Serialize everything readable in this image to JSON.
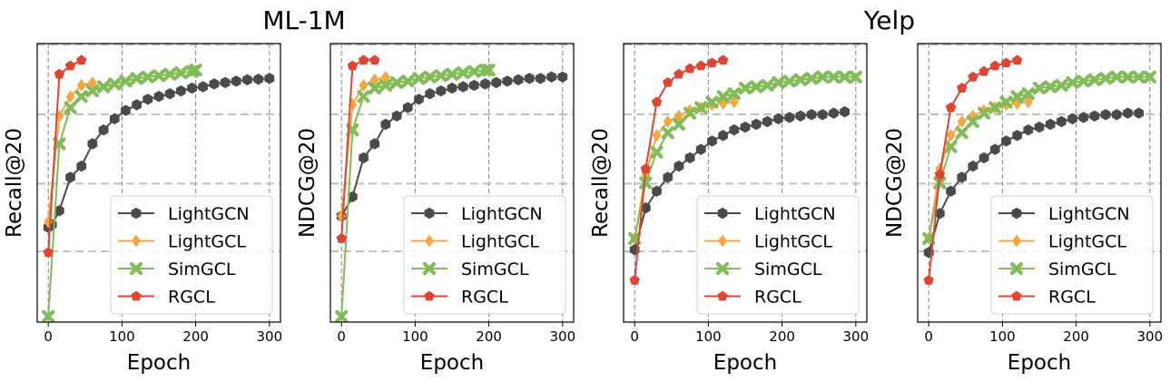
{
  "figure": {
    "titles": [
      "ML-1M",
      "Yelp"
    ]
  },
  "colors": {
    "LightGCN": "#4a4a4a",
    "LightGCL": "#f5a742",
    "SimGCL": "#82bc59",
    "RGCL": "#dc4632"
  },
  "markers": {
    "LightGCN": "hexagon",
    "LightGCL": "diamond",
    "SimGCL": "x-cross",
    "RGCL": "pentagon"
  },
  "chart_data": [
    {
      "type": "line",
      "title": "",
      "xlabel": "Epoch",
      "ylabel": "Recall@20",
      "xlim": [
        -15,
        315
      ],
      "ylim": [
        0,
        1
      ],
      "xticks": [
        0,
        100,
        200,
        300
      ],
      "grid": "dashed",
      "legend": "lower-right",
      "series": [
        {
          "name": "LightGCN",
          "x": [
            0,
            5,
            15,
            30,
            45,
            60,
            75,
            90,
            105,
            120,
            135,
            150,
            165,
            180,
            195,
            210,
            225,
            240,
            255,
            270,
            285,
            300
          ],
          "y": [
            0.34,
            0.35,
            0.4,
            0.52,
            0.56,
            0.64,
            0.69,
            0.73,
            0.76,
            0.78,
            0.8,
            0.81,
            0.82,
            0.83,
            0.84,
            0.845,
            0.855,
            0.86,
            0.865,
            0.87,
            0.872,
            0.875
          ]
        },
        {
          "name": "LightGCL",
          "x": [
            0,
            15,
            30,
            45,
            60
          ],
          "y": [
            0.36,
            0.74,
            0.81,
            0.85,
            0.86
          ]
        },
        {
          "name": "SimGCL",
          "x": [
            0,
            15,
            30,
            45,
            60,
            75,
            90,
            105,
            120,
            135,
            150,
            165,
            180,
            195,
            200
          ],
          "y": [
            0.02,
            0.64,
            0.77,
            0.81,
            0.83,
            0.845,
            0.855,
            0.865,
            0.875,
            0.88,
            0.885,
            0.89,
            0.895,
            0.9,
            0.905
          ]
        },
        {
          "name": "RGCL",
          "x": [
            0,
            15,
            30,
            45
          ],
          "y": [
            0.25,
            0.89,
            0.92,
            0.94
          ]
        }
      ]
    },
    {
      "type": "line",
      "title": "",
      "xlabel": "Epoch",
      "ylabel": "NDCG@20",
      "xlim": [
        -15,
        315
      ],
      "ylim": [
        0,
        1
      ],
      "xticks": [
        0,
        100,
        200,
        300
      ],
      "grid": "dashed",
      "legend": "lower-right",
      "series": [
        {
          "name": "LightGCN",
          "x": [
            0,
            15,
            30,
            45,
            60,
            75,
            90,
            105,
            120,
            135,
            150,
            165,
            180,
            195,
            210,
            225,
            240,
            255,
            270,
            285,
            300
          ],
          "y": [
            0.38,
            0.45,
            0.59,
            0.64,
            0.71,
            0.74,
            0.77,
            0.8,
            0.82,
            0.83,
            0.84,
            0.845,
            0.85,
            0.855,
            0.86,
            0.865,
            0.87,
            0.875,
            0.875,
            0.88,
            0.88
          ]
        },
        {
          "name": "LightGCL",
          "x": [
            0,
            15,
            30,
            45,
            60
          ],
          "y": [
            0.38,
            0.78,
            0.85,
            0.87,
            0.88
          ]
        },
        {
          "name": "SimGCL",
          "x": [
            0,
            15,
            30,
            45,
            60,
            75,
            90,
            105,
            120,
            135,
            150,
            165,
            180,
            195,
            200
          ],
          "y": [
            0.02,
            0.69,
            0.81,
            0.84,
            0.85,
            0.86,
            0.865,
            0.875,
            0.88,
            0.885,
            0.89,
            0.895,
            0.9,
            0.905,
            0.905
          ]
        },
        {
          "name": "RGCL",
          "x": [
            0,
            15,
            30,
            45
          ],
          "y": [
            0.3,
            0.92,
            0.94,
            0.94
          ]
        }
      ]
    },
    {
      "type": "line",
      "title": "",
      "xlabel": "Epoch",
      "ylabel": "Recall@20",
      "xlim": [
        -15,
        315
      ],
      "ylim": [
        0,
        1
      ],
      "xticks": [
        0,
        100,
        200,
        300
      ],
      "grid": "dashed",
      "legend": "lower-right",
      "series": [
        {
          "name": "LightGCN",
          "x": [
            0,
            15,
            30,
            45,
            60,
            75,
            90,
            105,
            120,
            135,
            150,
            165,
            180,
            195,
            210,
            225,
            240,
            255,
            270,
            285
          ],
          "y": [
            0.26,
            0.41,
            0.47,
            0.52,
            0.56,
            0.59,
            0.62,
            0.65,
            0.67,
            0.69,
            0.7,
            0.71,
            0.72,
            0.73,
            0.735,
            0.74,
            0.745,
            0.745,
            0.75,
            0.755
          ]
        },
        {
          "name": "LightGCL",
          "x": [
            0,
            15,
            30,
            45,
            60,
            75,
            90,
            105,
            120,
            135
          ],
          "y": [
            0.3,
            0.53,
            0.67,
            0.72,
            0.74,
            0.76,
            0.77,
            0.78,
            0.785,
            0.79
          ]
        },
        {
          "name": "SimGCL",
          "x": [
            0,
            15,
            30,
            45,
            60,
            75,
            90,
            105,
            120,
            135,
            150,
            165,
            180,
            195,
            210,
            225,
            240,
            255,
            270,
            285,
            300
          ],
          "y": [
            0.3,
            0.5,
            0.61,
            0.68,
            0.71,
            0.75,
            0.77,
            0.79,
            0.81,
            0.82,
            0.84,
            0.845,
            0.85,
            0.86,
            0.865,
            0.87,
            0.875,
            0.88,
            0.88,
            0.88,
            0.88
          ]
        },
        {
          "name": "RGCL",
          "x": [
            0,
            15,
            30,
            45,
            60,
            75,
            90,
            105,
            120
          ],
          "y": [
            0.15,
            0.55,
            0.79,
            0.86,
            0.89,
            0.91,
            0.92,
            0.93,
            0.94
          ]
        }
      ]
    },
    {
      "type": "line",
      "title": "",
      "xlabel": "Epoch",
      "ylabel": "NDCG@20",
      "xlim": [
        -15,
        315
      ],
      "ylim": [
        0,
        1
      ],
      "xticks": [
        0,
        100,
        200,
        300
      ],
      "grid": "dashed",
      "legend": "lower-right",
      "series": [
        {
          "name": "LightGCN",
          "x": [
            0,
            15,
            30,
            45,
            60,
            75,
            90,
            105,
            120,
            135,
            150,
            165,
            180,
            195,
            210,
            225,
            240,
            255,
            270,
            285
          ],
          "y": [
            0.25,
            0.39,
            0.47,
            0.52,
            0.56,
            0.59,
            0.62,
            0.65,
            0.67,
            0.69,
            0.7,
            0.71,
            0.72,
            0.73,
            0.735,
            0.74,
            0.745,
            0.745,
            0.75,
            0.75
          ]
        },
        {
          "name": "LightGCL",
          "x": [
            0,
            15,
            30,
            45,
            60,
            75,
            90,
            105,
            120,
            135
          ],
          "y": [
            0.3,
            0.55,
            0.67,
            0.72,
            0.74,
            0.76,
            0.77,
            0.78,
            0.785,
            0.79
          ]
        },
        {
          "name": "SimGCL",
          "x": [
            0,
            15,
            30,
            45,
            60,
            75,
            90,
            105,
            120,
            135,
            150,
            165,
            180,
            195,
            210,
            225,
            240,
            255,
            270,
            285,
            300
          ],
          "y": [
            0.3,
            0.5,
            0.63,
            0.68,
            0.72,
            0.75,
            0.77,
            0.79,
            0.81,
            0.82,
            0.84,
            0.845,
            0.85,
            0.86,
            0.865,
            0.87,
            0.875,
            0.88,
            0.88,
            0.88,
            0.88
          ]
        },
        {
          "name": "RGCL",
          "x": [
            0,
            15,
            30,
            45,
            60,
            75,
            90,
            105,
            120
          ],
          "y": [
            0.15,
            0.53,
            0.77,
            0.84,
            0.88,
            0.9,
            0.92,
            0.93,
            0.94
          ]
        }
      ]
    }
  ]
}
